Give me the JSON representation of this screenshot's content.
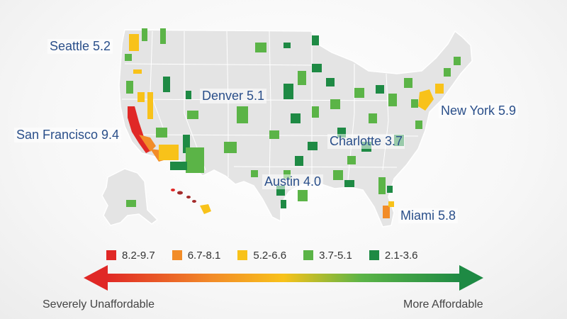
{
  "colors": {
    "severe": "#e02826",
    "serious": "#f28c28",
    "moderate": "#f8c21a",
    "affordable": "#5bb447",
    "most_affordable": "#1e8a44",
    "land": "#e4e4e4",
    "border": "#ffffff",
    "label": "#2a4f8a"
  },
  "cities": {
    "seattle": "Seattle 5.2",
    "denver": "Denver 5.1",
    "san_francisco": "San Francisco 9.4",
    "new_york": "New York 5.9",
    "charlotte": "Charlotte 3.7",
    "austin": "Austin 4.0",
    "miami": "Miami 5.8"
  },
  "legend": [
    {
      "label": "8.2-9.7",
      "color": "#e02826"
    },
    {
      "label": "6.7-8.1",
      "color": "#f28c28"
    },
    {
      "label": "5.2-6.6",
      "color": "#f8c21a"
    },
    {
      "label": "3.7-5.1",
      "color": "#5bb447"
    },
    {
      "label": "2.1-3.6",
      "color": "#1e8a44"
    }
  ],
  "scale": {
    "left_label": "Severely Unaffordable",
    "right_label": "More Affordable"
  }
}
